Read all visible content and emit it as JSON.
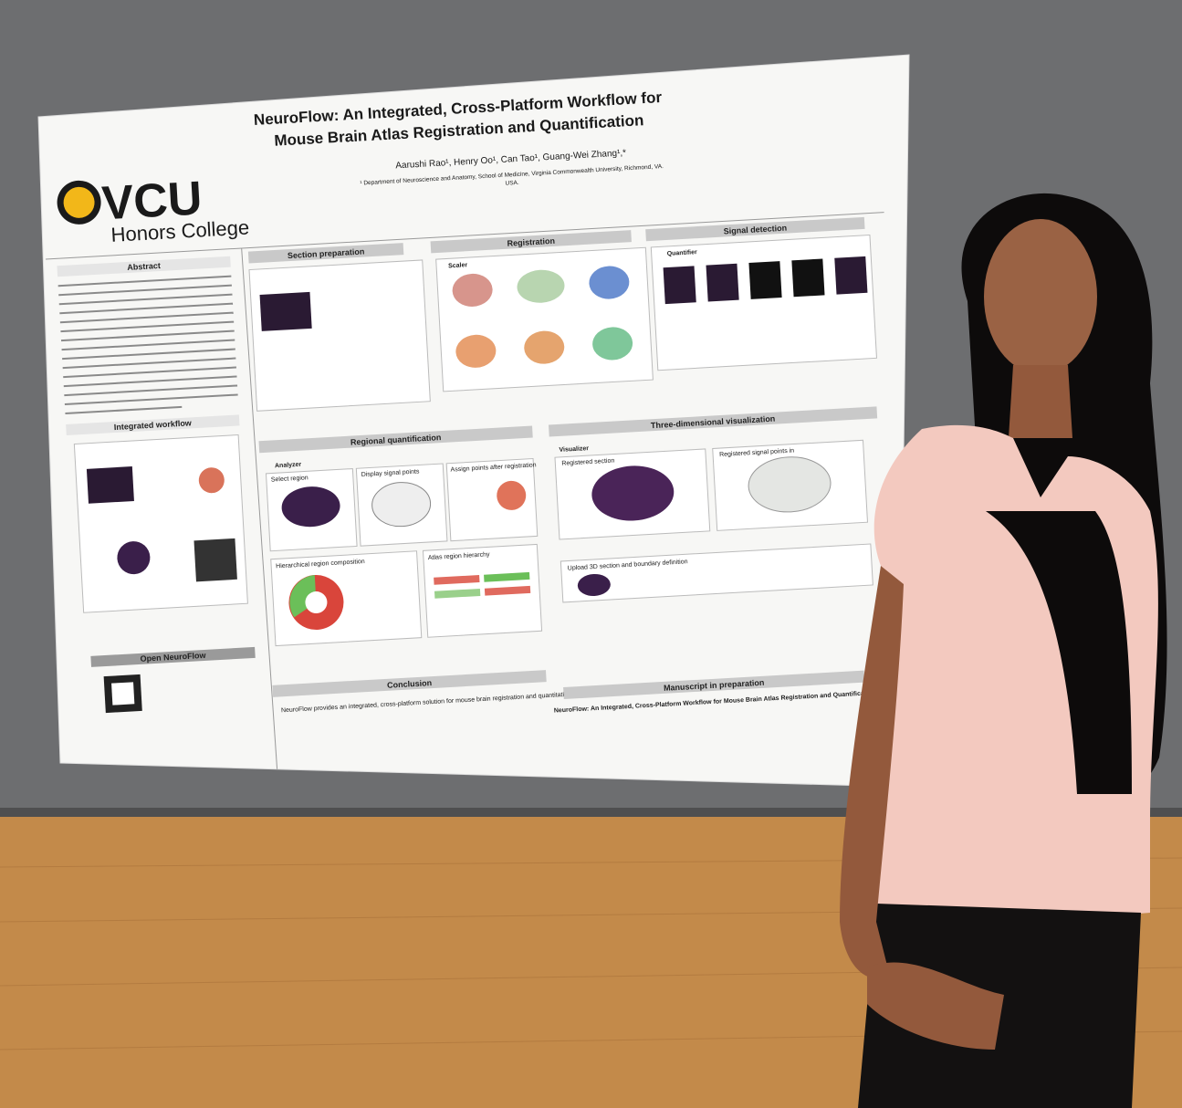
{
  "poster": {
    "title_line1": "NeuroFlow: An Integrated, Cross-Platform Workflow for",
    "title_line2": "Mouse Brain Atlas Registration and Quantification",
    "logo": "VCU",
    "college": "Honors College",
    "authors": "Aarushi Rao¹, Henry Oo¹, Can Tao¹, Guang-Wei Zhang¹,*",
    "affiliation": "¹ Department of Neuroscience and Anatomy, School of Medicine, Virginia Commonwealth University, Richmond, VA.",
    "affiliation_end": "USA.",
    "sections": {
      "abstract": "Abstract",
      "workflow": "Integrated workflow",
      "open": "Open NeuroFlow",
      "section_prep": "Section preparation",
      "registration": "Registration",
      "signal": "Signal detection",
      "regional": "Regional quantification",
      "three_d": "Three-dimensional visualization",
      "conclusion": "Conclusion",
      "manuscript": "Manuscript in preparation"
    },
    "panels": {
      "scaler": "Scaler",
      "quantifier": "Quantifier",
      "analyzer": "Analyzer",
      "visualizer": "Visualizer",
      "select_region": "Select region",
      "display_points": "Display signal points",
      "assign_points": "Assign points after registration",
      "registered_section": "Registered section",
      "registered_points": "Registered signal points in",
      "hierarchical": "Hierarchical region composition",
      "atlas_hierarchy": "Atlas region hierarchy",
      "upload": "Upload 3D section and boundary definition"
    },
    "conclusion_text": "NeuroFlow provides an integrated, cross-platform solution for mouse brain registration and quantitative analysis.",
    "manuscript_title": "NeuroFlow: An Integrated, Cross-Platform Workflow for Mouse Brain Atlas Registration and Quantification"
  }
}
